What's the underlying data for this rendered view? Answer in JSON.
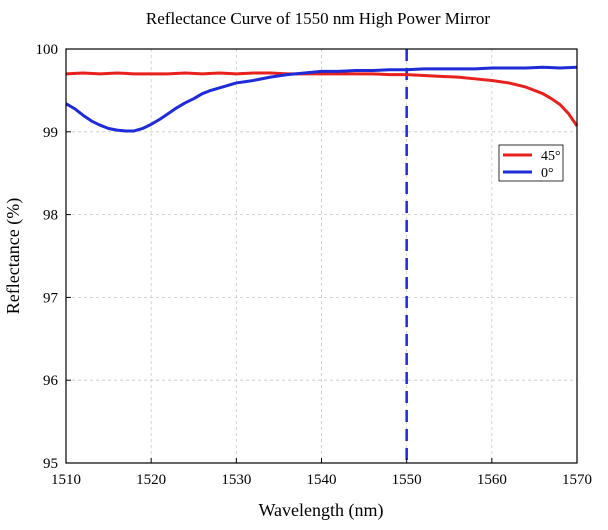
{
  "chart_data": {
    "type": "line",
    "title": "Reflectance Curve of 1550 nm High Power Mirror",
    "xlabel": "Wavelength (nm)",
    "ylabel": "Reflectance (%)",
    "xlim": [
      1510,
      1570
    ],
    "ylim": [
      95,
      100
    ],
    "xticks": [
      1510,
      1520,
      1530,
      1540,
      1550,
      1560,
      1570
    ],
    "yticks": [
      95,
      96,
      97,
      98,
      99,
      100
    ],
    "grid": true,
    "legend_position": "right",
    "reference_line": {
      "x": 1550,
      "style": "dashed",
      "color": "#1f2bd6"
    },
    "series": [
      {
        "name": "45°",
        "color": "#e8211f",
        "points": [
          [
            1510,
            99.7
          ],
          [
            1512,
            99.71
          ],
          [
            1514,
            99.7
          ],
          [
            1516,
            99.71
          ],
          [
            1518,
            99.7
          ],
          [
            1520,
            99.7
          ],
          [
            1522,
            99.7
          ],
          [
            1524,
            99.71
          ],
          [
            1526,
            99.7
          ],
          [
            1528,
            99.71
          ],
          [
            1530,
            99.7
          ],
          [
            1532,
            99.71
          ],
          [
            1534,
            99.71
          ],
          [
            1536,
            99.7
          ],
          [
            1538,
            99.7
          ],
          [
            1540,
            99.7
          ],
          [
            1542,
            99.7
          ],
          [
            1544,
            99.7
          ],
          [
            1546,
            99.7
          ],
          [
            1548,
            99.69
          ],
          [
            1550,
            99.69
          ],
          [
            1552,
            99.68
          ],
          [
            1554,
            99.67
          ],
          [
            1556,
            99.66
          ],
          [
            1558,
            99.64
          ],
          [
            1560,
            99.62
          ],
          [
            1562,
            99.59
          ],
          [
            1564,
            99.54
          ],
          [
            1566,
            99.46
          ],
          [
            1567,
            99.4
          ],
          [
            1568,
            99.33
          ],
          [
            1569,
            99.22
          ],
          [
            1570,
            99.07
          ]
        ]
      },
      {
        "name": "0°",
        "color": "#1f2bd6",
        "points": [
          [
            1510,
            99.34
          ],
          [
            1511,
            99.28
          ],
          [
            1512,
            99.2
          ],
          [
            1513,
            99.13
          ],
          [
            1514,
            99.08
          ],
          [
            1515,
            99.04
          ],
          [
            1516,
            99.02
          ],
          [
            1517,
            99.01
          ],
          [
            1518,
            99.01
          ],
          [
            1519,
            99.04
          ],
          [
            1520,
            99.09
          ],
          [
            1521,
            99.15
          ],
          [
            1522,
            99.22
          ],
          [
            1523,
            99.29
          ],
          [
            1524,
            99.35
          ],
          [
            1525,
            99.4
          ],
          [
            1526,
            99.46
          ],
          [
            1527,
            99.5
          ],
          [
            1528,
            99.53
          ],
          [
            1529,
            99.56
          ],
          [
            1530,
            99.59
          ],
          [
            1532,
            99.62
          ],
          [
            1534,
            99.66
          ],
          [
            1536,
            99.69
          ],
          [
            1538,
            99.71
          ],
          [
            1540,
            99.73
          ],
          [
            1542,
            99.73
          ],
          [
            1544,
            99.74
          ],
          [
            1546,
            99.74
          ],
          [
            1548,
            99.75
          ],
          [
            1550,
            99.75
          ],
          [
            1552,
            99.76
          ],
          [
            1554,
            99.76
          ],
          [
            1556,
            99.76
          ],
          [
            1558,
            99.76
          ],
          [
            1560,
            99.77
          ],
          [
            1562,
            99.77
          ],
          [
            1564,
            99.77
          ],
          [
            1566,
            99.78
          ],
          [
            1568,
            99.77
          ],
          [
            1570,
            99.78
          ]
        ]
      }
    ]
  }
}
